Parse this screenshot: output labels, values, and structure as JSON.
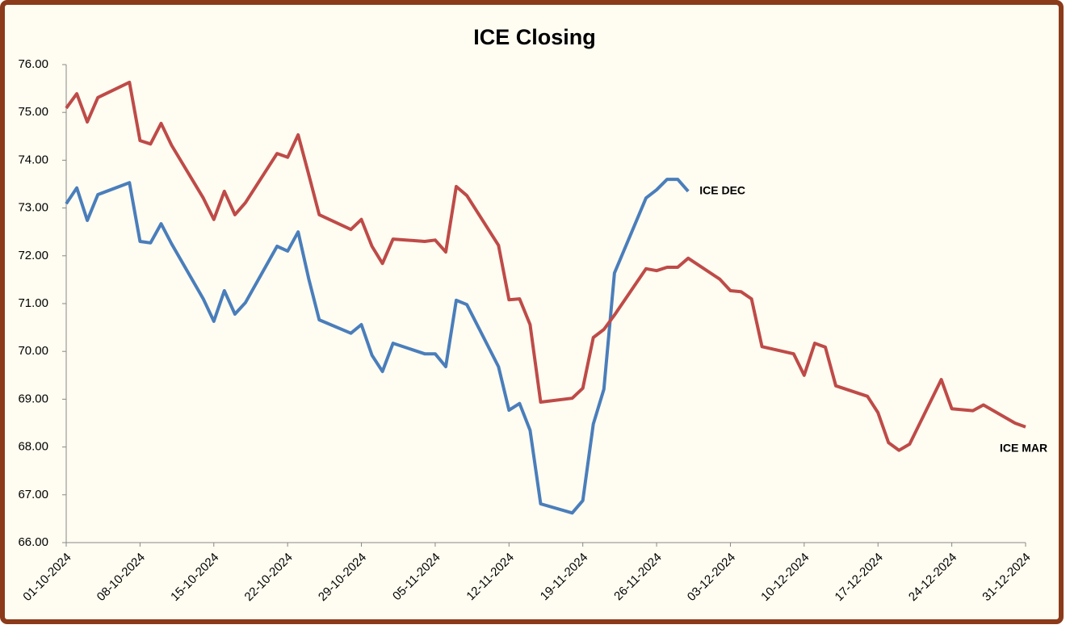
{
  "chart_data": {
    "type": "line",
    "title": "ICE Closing",
    "x": [
      "01-10-2024",
      "02-10-2024",
      "03-10-2024",
      "04-10-2024",
      "07-10-2024",
      "08-10-2024",
      "09-10-2024",
      "10-10-2024",
      "11-10-2024",
      "14-10-2024",
      "15-10-2024",
      "16-10-2024",
      "17-10-2024",
      "18-10-2024",
      "21-10-2024",
      "22-10-2024",
      "23-10-2024",
      "24-10-2024",
      "25-10-2024",
      "28-10-2024",
      "29-10-2024",
      "30-10-2024",
      "31-10-2024",
      "01-11-2024",
      "04-11-2024",
      "05-11-2024",
      "06-11-2024",
      "07-11-2024",
      "08-11-2024",
      "11-11-2024",
      "12-11-2024",
      "13-11-2024",
      "14-11-2024",
      "15-11-2024",
      "18-11-2024",
      "19-11-2024",
      "20-11-2024",
      "21-11-2024",
      "22-11-2024",
      "25-11-2024",
      "26-11-2024",
      "27-11-2024",
      "28-11-2024",
      "29-11-2024",
      "02-12-2024",
      "03-12-2024",
      "04-12-2024",
      "05-12-2024",
      "06-12-2024",
      "09-12-2024",
      "10-12-2024",
      "11-12-2024",
      "12-12-2024",
      "13-12-2024",
      "16-12-2024",
      "17-12-2024",
      "18-12-2024",
      "19-12-2024",
      "20-12-2024",
      "23-12-2024",
      "24-12-2024",
      "26-12-2024",
      "27-12-2024",
      "30-12-2024",
      "31-12-2024"
    ],
    "series": [
      {
        "name": "ICE DEC",
        "color": "#4a7ebb",
        "values": [
          73.09,
          73.42,
          72.74,
          73.28,
          73.53,
          72.3,
          72.27,
          72.67,
          72.25,
          71.1,
          70.63,
          71.27,
          70.78,
          71.02,
          72.2,
          72.1,
          72.5,
          71.52,
          70.66,
          70.38,
          70.56,
          69.92,
          69.58,
          70.17,
          69.95,
          69.95,
          69.68,
          71.07,
          70.98,
          69.68,
          68.77,
          68.91,
          68.35,
          66.81,
          66.62,
          66.88,
          68.48,
          69.21,
          71.64,
          73.21,
          73.38,
          73.6,
          73.6,
          73.35,
          null,
          null,
          null,
          null,
          null,
          null,
          null,
          null,
          null,
          null,
          null,
          null,
          null,
          null,
          null,
          null,
          null,
          null,
          null,
          null,
          null
        ]
      },
      {
        "name": "ICE MAR",
        "color": "#be4b48",
        "values": [
          75.09,
          75.39,
          74.8,
          75.31,
          75.63,
          74.41,
          74.34,
          74.77,
          74.31,
          73.21,
          72.76,
          73.35,
          72.86,
          73.11,
          74.14,
          74.06,
          74.53,
          73.7,
          72.86,
          72.55,
          72.76,
          72.2,
          71.84,
          72.35,
          72.3,
          72.33,
          72.08,
          73.45,
          73.26,
          72.22,
          71.08,
          71.1,
          70.56,
          68.94,
          69.02,
          69.23,
          70.29,
          70.46,
          70.76,
          71.73,
          71.69,
          71.76,
          71.76,
          71.95,
          71.51,
          71.27,
          71.25,
          71.1,
          70.1,
          69.95,
          69.5,
          70.17,
          70.09,
          69.28,
          69.06,
          68.72,
          68.09,
          67.93,
          68.06,
          69.41,
          68.8,
          68.76,
          68.88,
          68.5,
          68.42
        ]
      }
    ],
    "xlim": [
      "01-10-2024",
      "31-12-2024"
    ],
    "xticks": [
      "01-10-2024",
      "08-10-2024",
      "15-10-2024",
      "22-10-2024",
      "29-10-2024",
      "05-11-2024",
      "12-11-2024",
      "19-11-2024",
      "26-11-2024",
      "03-12-2024",
      "10-12-2024",
      "17-12-2024",
      "24-12-2024",
      "31-12-2024"
    ],
    "ylim": [
      66,
      76
    ],
    "yticks": [
      {
        "value": 66,
        "label": "66.00"
      },
      {
        "value": 67,
        "label": "67.00"
      },
      {
        "value": 68,
        "label": "68.00"
      },
      {
        "value": 69,
        "label": "69.00"
      },
      {
        "value": 70,
        "label": "70.00"
      },
      {
        "value": 71,
        "label": "71.00"
      },
      {
        "value": 72,
        "label": "72.00"
      },
      {
        "value": 73,
        "label": "73.00"
      },
      {
        "value": 74,
        "label": "74.00"
      },
      {
        "value": 75,
        "label": "75.00"
      },
      {
        "value": 76,
        "label": "76.00"
      }
    ],
    "grid": false
  }
}
